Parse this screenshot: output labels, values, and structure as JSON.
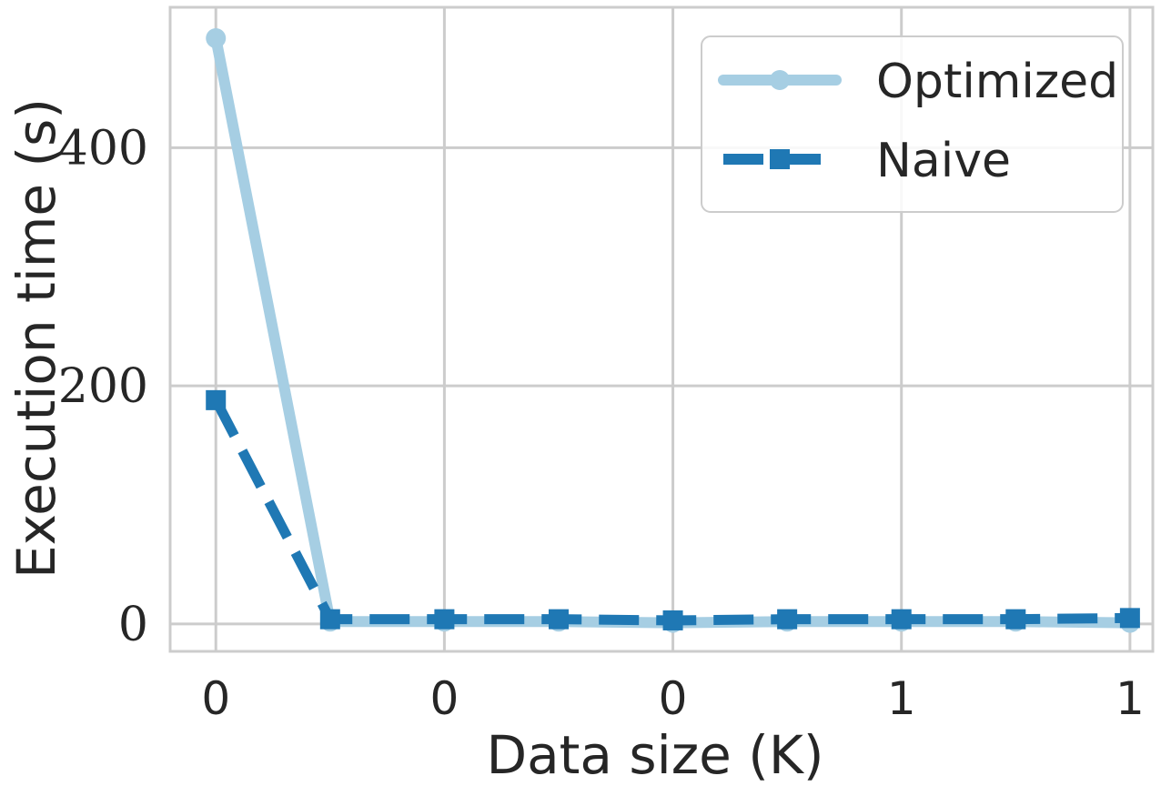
{
  "chart_data": {
    "type": "line",
    "xlabel": "Data size (K)",
    "ylabel": "Execution time (s)",
    "x": [
      0.1,
      0.2,
      0.3,
      0.4,
      0.5,
      0.6,
      0.7,
      0.8,
      0.9
    ],
    "xticks": [
      0.1,
      0.3,
      0.5,
      0.7,
      0.9
    ],
    "xtick_labels": [
      "0",
      "0",
      "0",
      "1",
      "1"
    ],
    "yticks": [
      0,
      200,
      400
    ],
    "ytick_labels": [
      "0",
      "200",
      "400"
    ],
    "xlim": [
      0.06,
      0.92
    ],
    "ylim": [
      -23,
      518
    ],
    "grid": true,
    "legend_position": "top-right",
    "series": [
      {
        "name": "Optimized",
        "color": "#a6cee3",
        "line_style": "solid",
        "marker": "circle",
        "values": [
          492,
          2,
          2,
          2,
          1,
          2,
          2,
          2,
          1
        ]
      },
      {
        "name": "Naive",
        "color": "#1f78b4",
        "line_style": "dashed",
        "marker": "square",
        "values": [
          188,
          4,
          4,
          4,
          3,
          4,
          4,
          4,
          5
        ]
      }
    ]
  }
}
